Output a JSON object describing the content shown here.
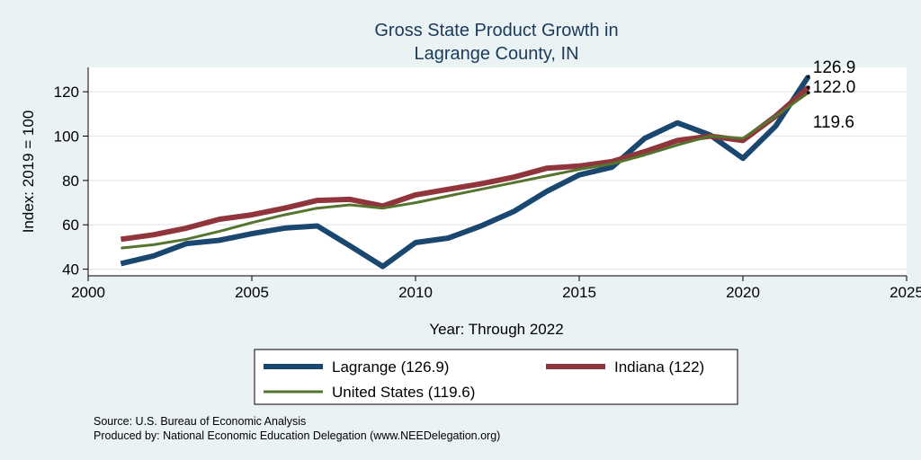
{
  "chart_data": {
    "type": "line",
    "title": [
      "Gross State Product Growth in",
      "Lagrange County, IN"
    ],
    "xlabel": "Year: Through 2022",
    "ylabel": "Index: 2019 = 100",
    "xlim": [
      2000,
      2025
    ],
    "ylim": [
      37,
      131
    ],
    "xticks": [
      2000,
      2005,
      2010,
      2015,
      2020,
      2025
    ],
    "yticks": [
      40,
      60,
      80,
      100,
      120
    ],
    "grid": true,
    "legend_position": "bottom",
    "x": [
      2001,
      2002,
      2003,
      2004,
      2005,
      2006,
      2007,
      2008,
      2009,
      2010,
      2011,
      2012,
      2013,
      2014,
      2015,
      2016,
      2017,
      2018,
      2019,
      2020,
      2021,
      2022
    ],
    "series": [
      {
        "name": "Lagrange  (126.9)",
        "color": "#1a476f",
        "values": [
          42.5,
          46,
          51.5,
          53,
          56,
          58.5,
          59.5,
          50.5,
          41.2,
          52,
          54,
          59.5,
          66,
          75,
          82.5,
          86,
          99,
          106,
          100.5,
          90,
          104.5,
          126.9
        ],
        "end_label": "126.9"
      },
      {
        "name": "Indiana (122)",
        "color": "#90353b",
        "values": [
          53.5,
          55.5,
          58.5,
          62.5,
          64.5,
          67.5,
          71,
          71.5,
          68.5,
          73.5,
          76,
          78.5,
          81.5,
          85.5,
          86.5,
          88.5,
          93,
          98,
          100,
          98,
          109,
          122.0
        ],
        "end_label": "122.0"
      },
      {
        "name": "United States (119.6)",
        "color": "#55752f",
        "values": [
          49.5,
          51,
          53.5,
          57,
          61,
          64.5,
          67.5,
          69,
          67.5,
          70,
          73,
          76,
          79,
          82,
          85,
          87.5,
          91.5,
          96,
          100,
          99,
          109,
          119.6
        ],
        "end_label": "119.6"
      }
    ],
    "notes": [
      "Source: U.S. Bureau of Economic Analysis",
      "Produced by: National Economic Education Delegation (www.NEEDelegation.org)"
    ]
  }
}
